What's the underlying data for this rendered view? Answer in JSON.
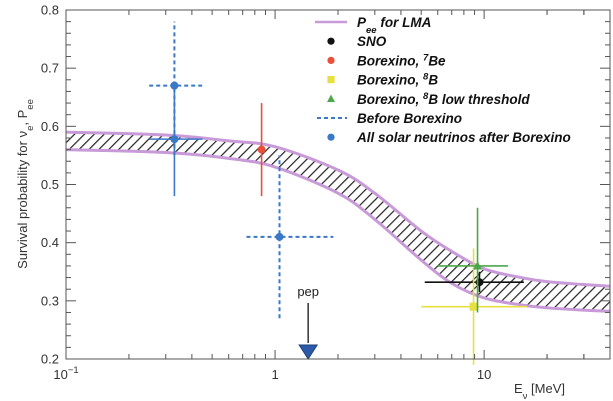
{
  "chart_data": {
    "type": "scatter",
    "title": "",
    "xlabel_main": "E",
    "xlabel_sub": "ν",
    "xlabel_unit": " [MeV]",
    "ylabel": "Survival probability for  νe, Pee",
    "x_scale": "log",
    "xlim": [
      0.1,
      40
    ],
    "ylim": [
      0.2,
      0.8
    ],
    "x_ticks": [
      {
        "value": 0.1,
        "base": "10",
        "exp": "−1"
      },
      {
        "value": 1,
        "base": "1",
        "exp": ""
      },
      {
        "value": 10,
        "base": "10",
        "exp": ""
      }
    ],
    "y_ticks": [
      "0.2",
      "0.3",
      "0.4",
      "0.5",
      "0.6",
      "0.7",
      "0.8"
    ],
    "grid": false,
    "band": {
      "name": "P_ee for LMA",
      "color": "#c89ad8",
      "upper": [
        [
          0.1,
          0.59
        ],
        [
          0.3,
          0.585
        ],
        [
          0.6,
          0.575
        ],
        [
          1,
          0.565
        ],
        [
          2,
          0.525
        ],
        [
          3,
          0.485
        ],
        [
          5,
          0.42
        ],
        [
          7,
          0.385
        ],
        [
          10,
          0.355
        ],
        [
          15,
          0.34
        ],
        [
          20,
          0.333
        ],
        [
          30,
          0.328
        ],
        [
          40,
          0.325
        ]
      ],
      "lower": [
        [
          0.1,
          0.56
        ],
        [
          0.3,
          0.555
        ],
        [
          0.6,
          0.545
        ],
        [
          1,
          0.53
        ],
        [
          2,
          0.485
        ],
        [
          3,
          0.44
        ],
        [
          5,
          0.37
        ],
        [
          7,
          0.33
        ],
        [
          10,
          0.305
        ],
        [
          15,
          0.293
        ],
        [
          20,
          0.288
        ],
        [
          30,
          0.284
        ],
        [
          40,
          0.282
        ]
      ]
    },
    "series": [
      {
        "name": "SNO",
        "color": "#111111",
        "marker": "circle",
        "points": [
          {
            "x": 9.5,
            "y": 0.332,
            "xlo": 5.2,
            "xhi": 15.5,
            "ylo": 0.315,
            "yhi": 0.35
          }
        ]
      },
      {
        "name": "Borexino, 7Be",
        "color": "#e8503a",
        "marker": "circle",
        "points": [
          {
            "x": 0.862,
            "y": 0.56,
            "xlo": 0.862,
            "xhi": 0.862,
            "ylo": 0.48,
            "yhi": 0.64
          }
        ]
      },
      {
        "name": "Borexino, 8B",
        "color": "#e6e040",
        "marker": "square",
        "points": [
          {
            "x": 8.9,
            "y": 0.29,
            "xlo": 5.0,
            "xhi": 16.0,
            "ylo": 0.19,
            "yhi": 0.39
          }
        ]
      },
      {
        "name": "Borexino, 8B low threshold",
        "color": "#4aa84a",
        "marker": "triangle",
        "points": [
          {
            "x": 9.3,
            "y": 0.36,
            "xlo": 6.0,
            "xhi": 13.0,
            "ylo": 0.28,
            "yhi": 0.46
          }
        ]
      },
      {
        "name": "Before Borexino",
        "color": "#3a78c8",
        "marker": "none",
        "dashed": true,
        "points": [
          {
            "x": 0.33,
            "y": 0.67,
            "xlo": 0.25,
            "xhi": 0.45,
            "ylo": 0.55,
            "yhi": 0.78
          },
          {
            "x": 1.05,
            "y": 0.41,
            "xlo": 0.73,
            "xhi": 1.9,
            "ylo": 0.27,
            "yhi": 0.55
          }
        ]
      },
      {
        "name": "All solar neutrinos after Borexino",
        "color": "#3a78c8",
        "marker": "circle",
        "points": [
          {
            "x": 0.33,
            "y": 0.67,
            "xlo": 0.33,
            "xhi": 0.33,
            "ylo": 0.67,
            "yhi": 0.67
          },
          {
            "x": 0.33,
            "y": 0.578,
            "xlo": 0.25,
            "xhi": 0.45,
            "ylo": 0.48,
            "yhi": 0.67
          },
          {
            "x": 1.05,
            "y": 0.41,
            "xlo": 1.05,
            "xhi": 1.05,
            "ylo": 0.41,
            "yhi": 0.41
          }
        ]
      }
    ],
    "legend": [
      {
        "label_main": "P",
        "label_sub": "ee",
        "label_rest": " for LMA",
        "symbol": "band-line",
        "color": "#c89ad8"
      },
      {
        "label_main": "SNO",
        "label_sup": "",
        "label_rest": "",
        "symbol": "circle",
        "color": "#111111"
      },
      {
        "label_main": "Borexino, ",
        "label_sup": "7",
        "label_rest": "Be",
        "symbol": "circle",
        "color": "#e8503a"
      },
      {
        "label_main": "Borexino, ",
        "label_sup": "8",
        "label_rest": "B",
        "symbol": "square",
        "color": "#e6e040"
      },
      {
        "label_main": "Borexino, ",
        "label_sup": "8",
        "label_rest": "B low threshold",
        "symbol": "triangle",
        "color": "#4aa84a"
      },
      {
        "label_main": "Before Borexino",
        "label_sup": "",
        "label_rest": "",
        "symbol": "dashed-line",
        "color": "#3a78c8"
      },
      {
        "label_main": "All solar neutrinos after Borexino",
        "label_sup": "",
        "label_rest": "",
        "symbol": "circle",
        "color": "#3a78c8"
      }
    ],
    "legend_position": "top-right",
    "annotation": {
      "label": "pep",
      "x": 1.44,
      "color": "#2b5aa8"
    }
  }
}
